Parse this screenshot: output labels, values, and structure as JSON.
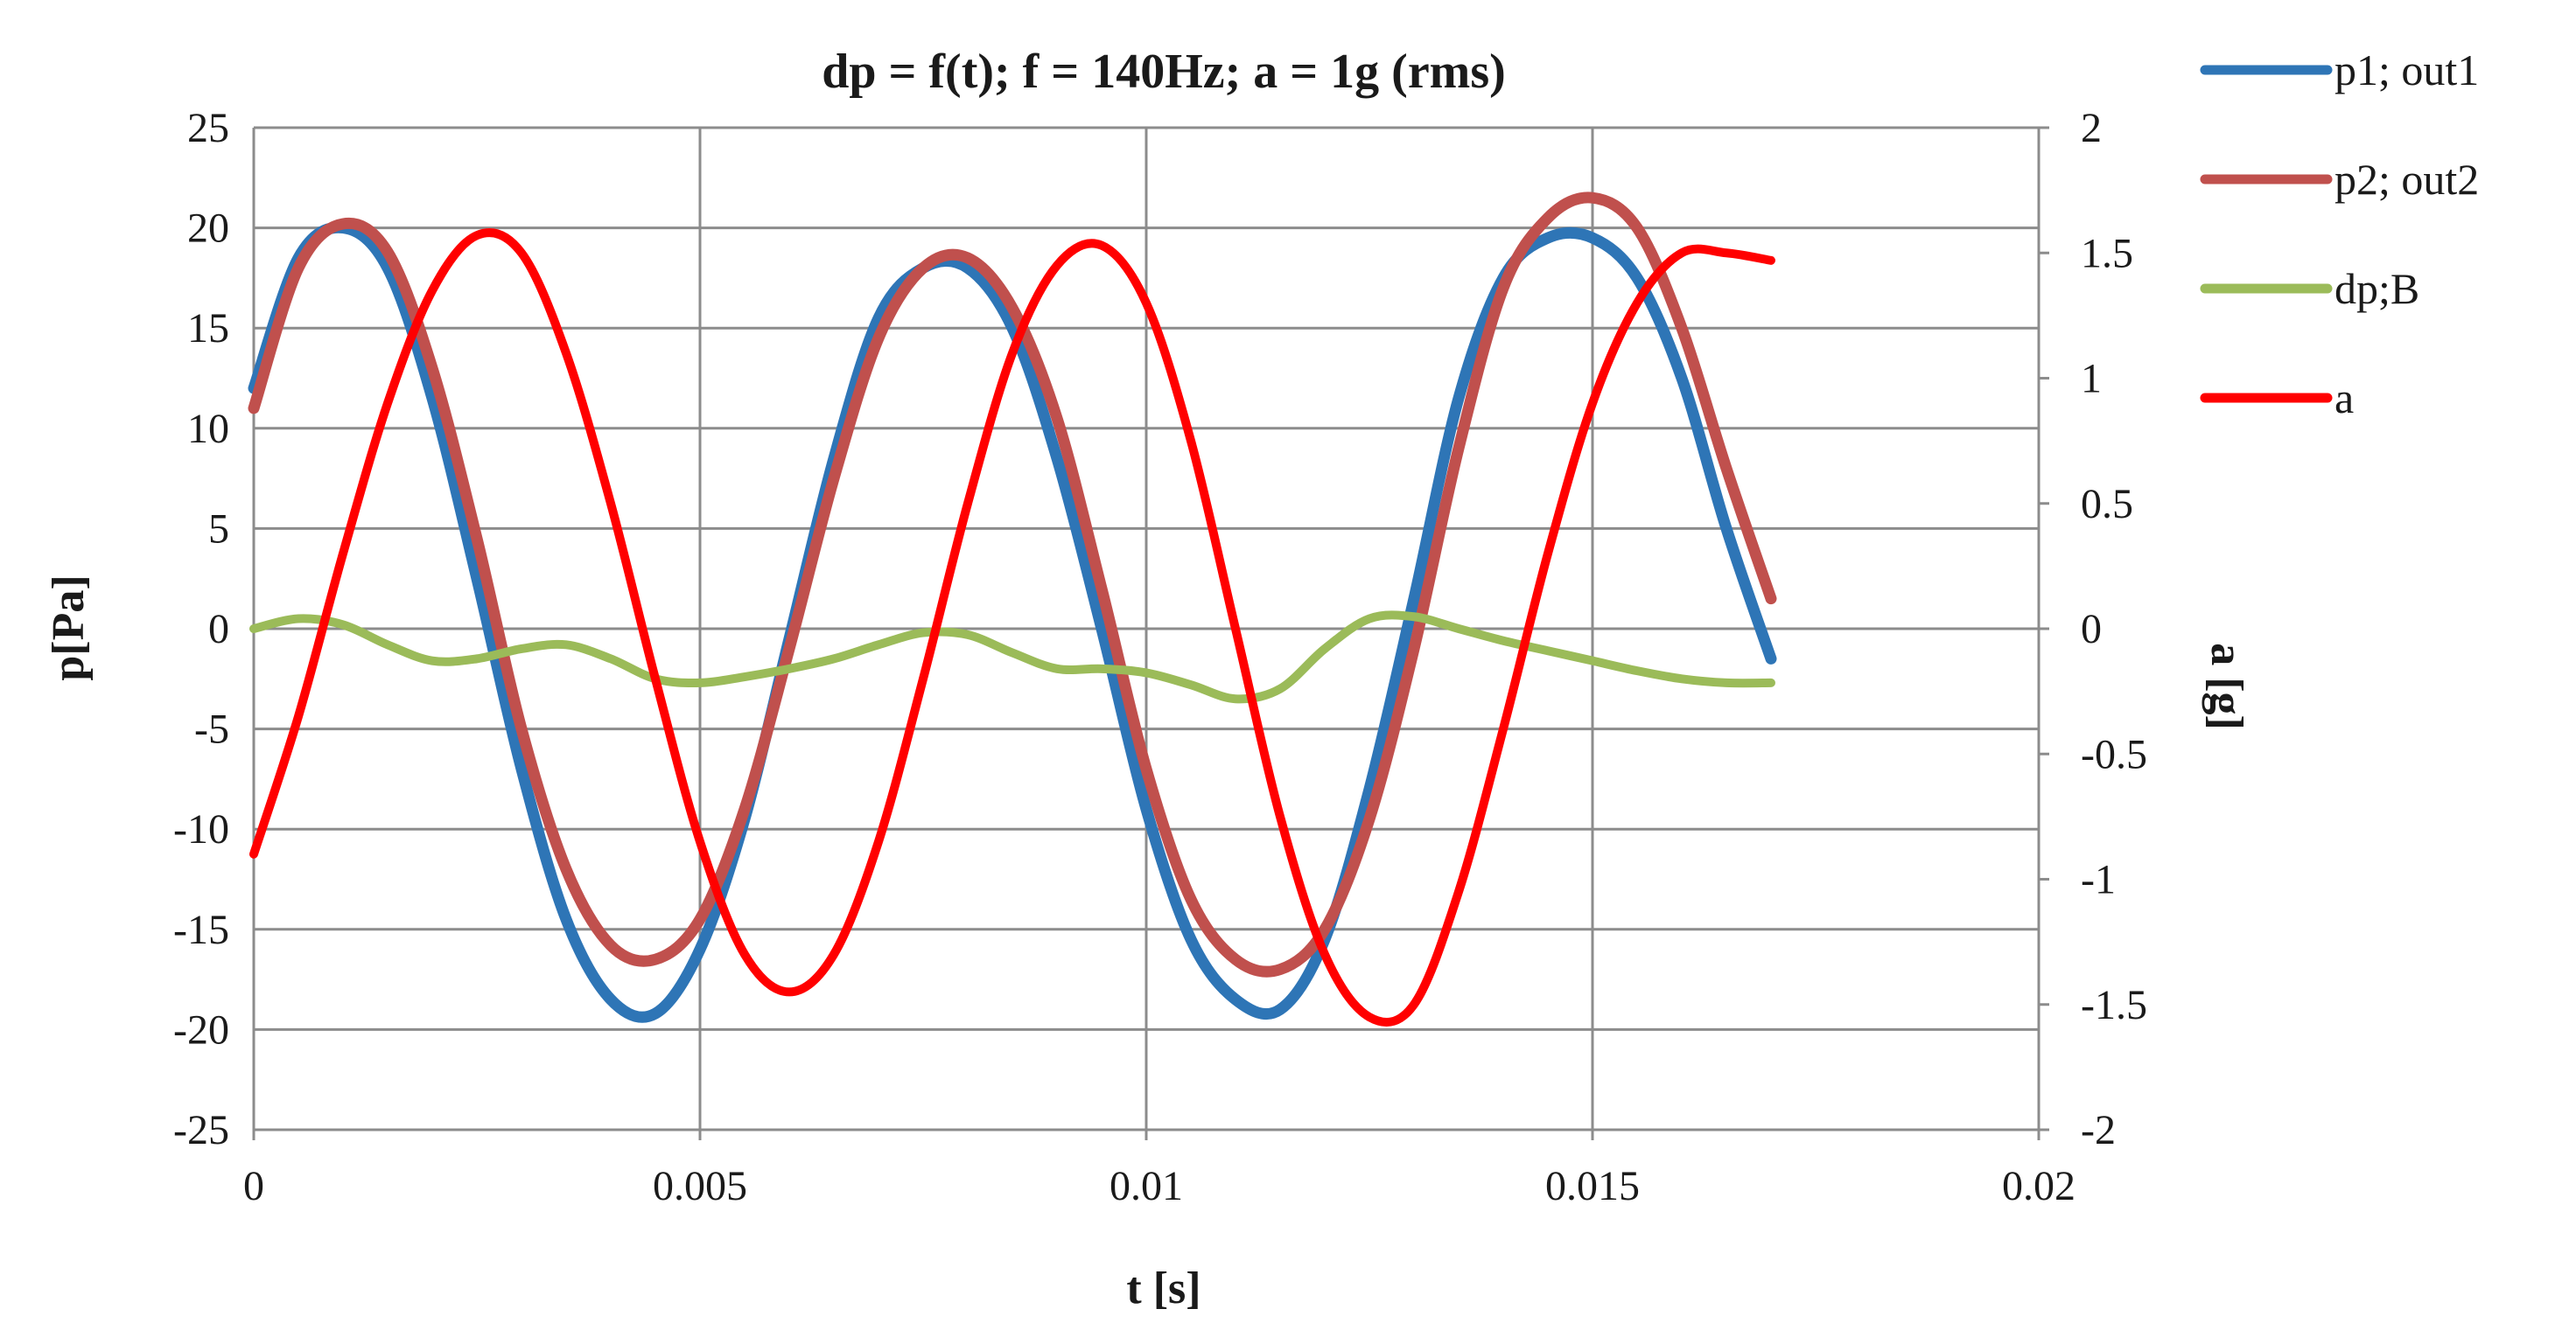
{
  "chart_data": {
    "type": "line",
    "title": "dp = f(t);  f = 140Hz;  a = 1g (rms)",
    "xlabel": "t [s]",
    "ylabel": "p[Pa]",
    "y2label": "a [g]",
    "xlim": [
      0,
      0.02
    ],
    "ylim": [
      -25,
      25
    ],
    "y2lim": [
      -2,
      2
    ],
    "x_ticks": [
      "0",
      "0.005",
      "0.01",
      "0.015",
      "0.02"
    ],
    "y_ticks": [
      "25",
      "20",
      "15",
      "10",
      "5",
      "0",
      "-5",
      "-10",
      "-15",
      "-20",
      "-25"
    ],
    "y2_ticks": [
      "2",
      "1.5",
      "1",
      "0.5",
      "0",
      "-0.5",
      "-1",
      "-1.5",
      "-2"
    ],
    "grid": true,
    "legend_position": "right",
    "series": [
      {
        "name": "p1; out1",
        "axis": "left",
        "color": "#2e75b6",
        "x": [
          0,
          0.0005,
          0.001,
          0.0015,
          0.002,
          0.0025,
          0.003,
          0.0035,
          0.004,
          0.0045,
          0.005,
          0.0055,
          0.006,
          0.0065,
          0.007,
          0.0075,
          0.008,
          0.0085,
          0.009,
          0.0095,
          0.01,
          0.0105,
          0.011,
          0.0115,
          0.012,
          0.0125,
          0.013,
          0.0135,
          0.014,
          0.0145,
          0.015,
          0.0155,
          0.016,
          0.0165,
          0.017
        ],
        "values": [
          12.0,
          18.5,
          20.0,
          18.0,
          11.5,
          2.5,
          -7.0,
          -14.5,
          -18.5,
          -19.2,
          -16.0,
          -9.5,
          -0.5,
          8.5,
          15.5,
          18.0,
          18.0,
          15.0,
          8.5,
          0.0,
          -9.0,
          -15.5,
          -18.5,
          -19.0,
          -15.5,
          -8.0,
          1.5,
          11.5,
          17.5,
          19.5,
          19.5,
          17.5,
          12.5,
          5.0,
          -1.5
        ]
      },
      {
        "name": "p2; out2",
        "axis": "left",
        "color": "#c0504d",
        "x": [
          0,
          0.0005,
          0.001,
          0.0015,
          0.002,
          0.0025,
          0.003,
          0.0035,
          0.004,
          0.0045,
          0.005,
          0.0055,
          0.006,
          0.0065,
          0.007,
          0.0075,
          0.008,
          0.0085,
          0.009,
          0.0095,
          0.01,
          0.0105,
          0.011,
          0.0115,
          0.012,
          0.0125,
          0.013,
          0.0135,
          0.014,
          0.0145,
          0.015,
          0.0155,
          0.016,
          0.0165,
          0.017
        ],
        "values": [
          11.0,
          18.0,
          20.2,
          18.8,
          13.0,
          4.5,
          -5.0,
          -12.0,
          -15.8,
          -16.5,
          -14.5,
          -9.0,
          -1.0,
          7.5,
          14.5,
          18.0,
          18.5,
          16.0,
          10.5,
          2.0,
          -7.0,
          -13.5,
          -16.5,
          -17.0,
          -15.0,
          -9.5,
          -1.0,
          9.0,
          17.0,
          20.5,
          21.5,
          20.0,
          15.0,
          8.0,
          1.5
        ]
      },
      {
        "name": "dp;B",
        "axis": "left",
        "color": "#9bbb59",
        "x": [
          0,
          0.0005,
          0.001,
          0.0015,
          0.002,
          0.0025,
          0.003,
          0.0035,
          0.004,
          0.0045,
          0.005,
          0.0055,
          0.006,
          0.0065,
          0.007,
          0.0075,
          0.008,
          0.0085,
          0.009,
          0.0095,
          0.01,
          0.0105,
          0.011,
          0.0115,
          0.012,
          0.0125,
          0.013,
          0.0135,
          0.014,
          0.0145,
          0.015,
          0.0155,
          0.016,
          0.0165,
          0.017
        ],
        "values": [
          0.0,
          0.5,
          0.2,
          -0.8,
          -1.6,
          -1.5,
          -1.0,
          -0.8,
          -1.5,
          -2.5,
          -2.7,
          -2.4,
          -2.0,
          -1.5,
          -0.8,
          -0.2,
          -0.3,
          -1.2,
          -2.0,
          -2.0,
          -2.2,
          -2.8,
          -3.5,
          -3.0,
          -1.0,
          0.5,
          0.6,
          0.0,
          -0.6,
          -1.1,
          -1.6,
          -2.1,
          -2.5,
          -2.7,
          -2.7
        ]
      },
      {
        "name": "a",
        "axis": "right",
        "color": "#ff0000",
        "x": [
          0,
          0.0005,
          0.001,
          0.0015,
          0.002,
          0.0025,
          0.003,
          0.0035,
          0.004,
          0.0045,
          0.005,
          0.0055,
          0.006,
          0.0065,
          0.007,
          0.0075,
          0.008,
          0.0085,
          0.009,
          0.0095,
          0.01,
          0.0105,
          0.011,
          0.0115,
          0.012,
          0.0125,
          0.013,
          0.0135,
          0.014,
          0.0145,
          0.015,
          0.0155,
          0.016,
          0.0165,
          0.017
        ],
        "values": [
          -0.9,
          -0.35,
          0.3,
          0.9,
          1.35,
          1.57,
          1.5,
          1.1,
          0.5,
          -0.2,
          -0.85,
          -1.3,
          -1.45,
          -1.3,
          -0.85,
          -0.2,
          0.5,
          1.1,
          1.45,
          1.53,
          1.3,
          0.75,
          0.0,
          -0.75,
          -1.3,
          -1.55,
          -1.5,
          -1.05,
          -0.4,
          0.3,
          0.9,
          1.3,
          1.5,
          1.5,
          1.47
        ]
      }
    ]
  }
}
